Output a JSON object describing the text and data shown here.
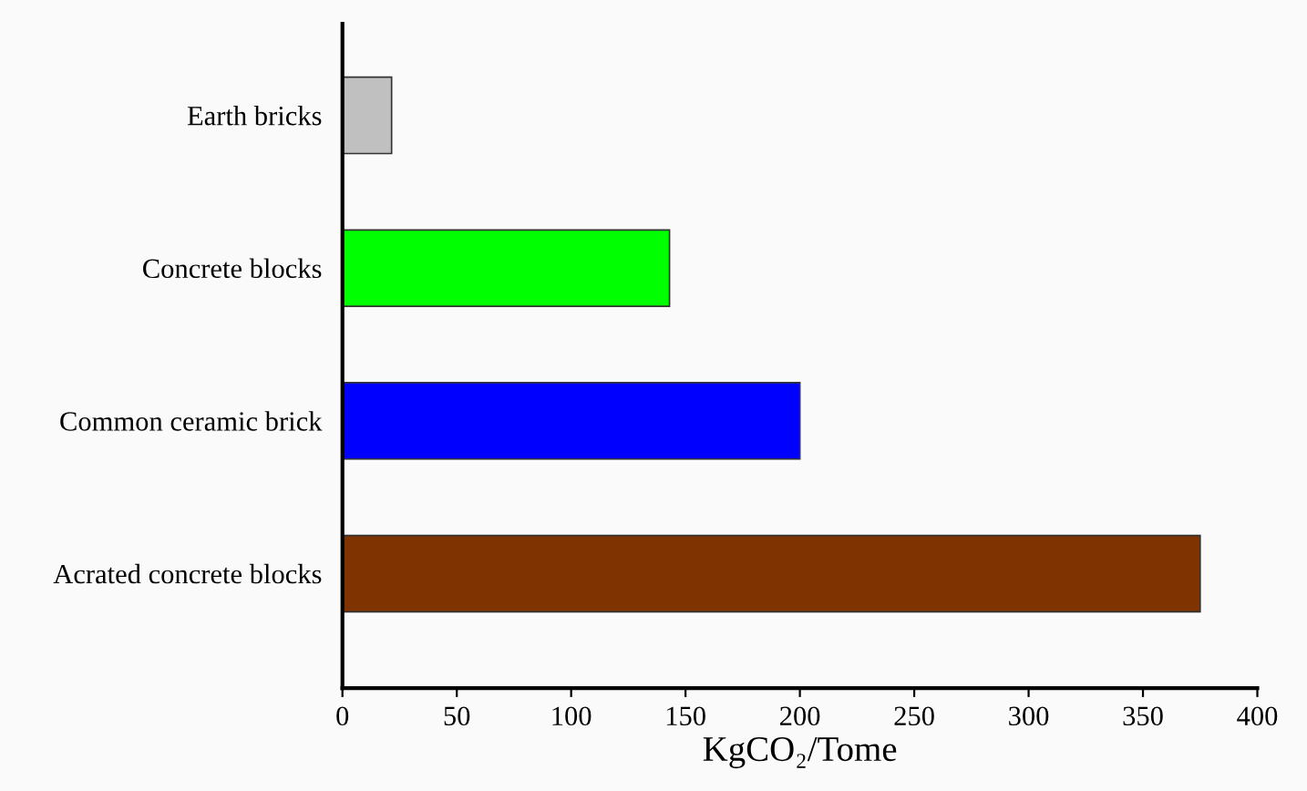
{
  "chart_data": {
    "type": "bar",
    "orientation": "horizontal",
    "xlabel": "KgCO₂/Tome",
    "categories": [
      "Earth bricks",
      "Concrete blocks",
      "Common ceramic brick",
      "Acrated concrete blocks"
    ],
    "values": [
      21.5,
      143,
      200,
      375
    ],
    "colors": [
      "#c0c0c0",
      "#00ff00",
      "#0000ff",
      "#7f3300"
    ],
    "xlim": [
      0,
      400
    ],
    "xticks": [
      0,
      50,
      100,
      150,
      200,
      250,
      300,
      350,
      400
    ],
    "grid": false,
    "legend": false
  }
}
